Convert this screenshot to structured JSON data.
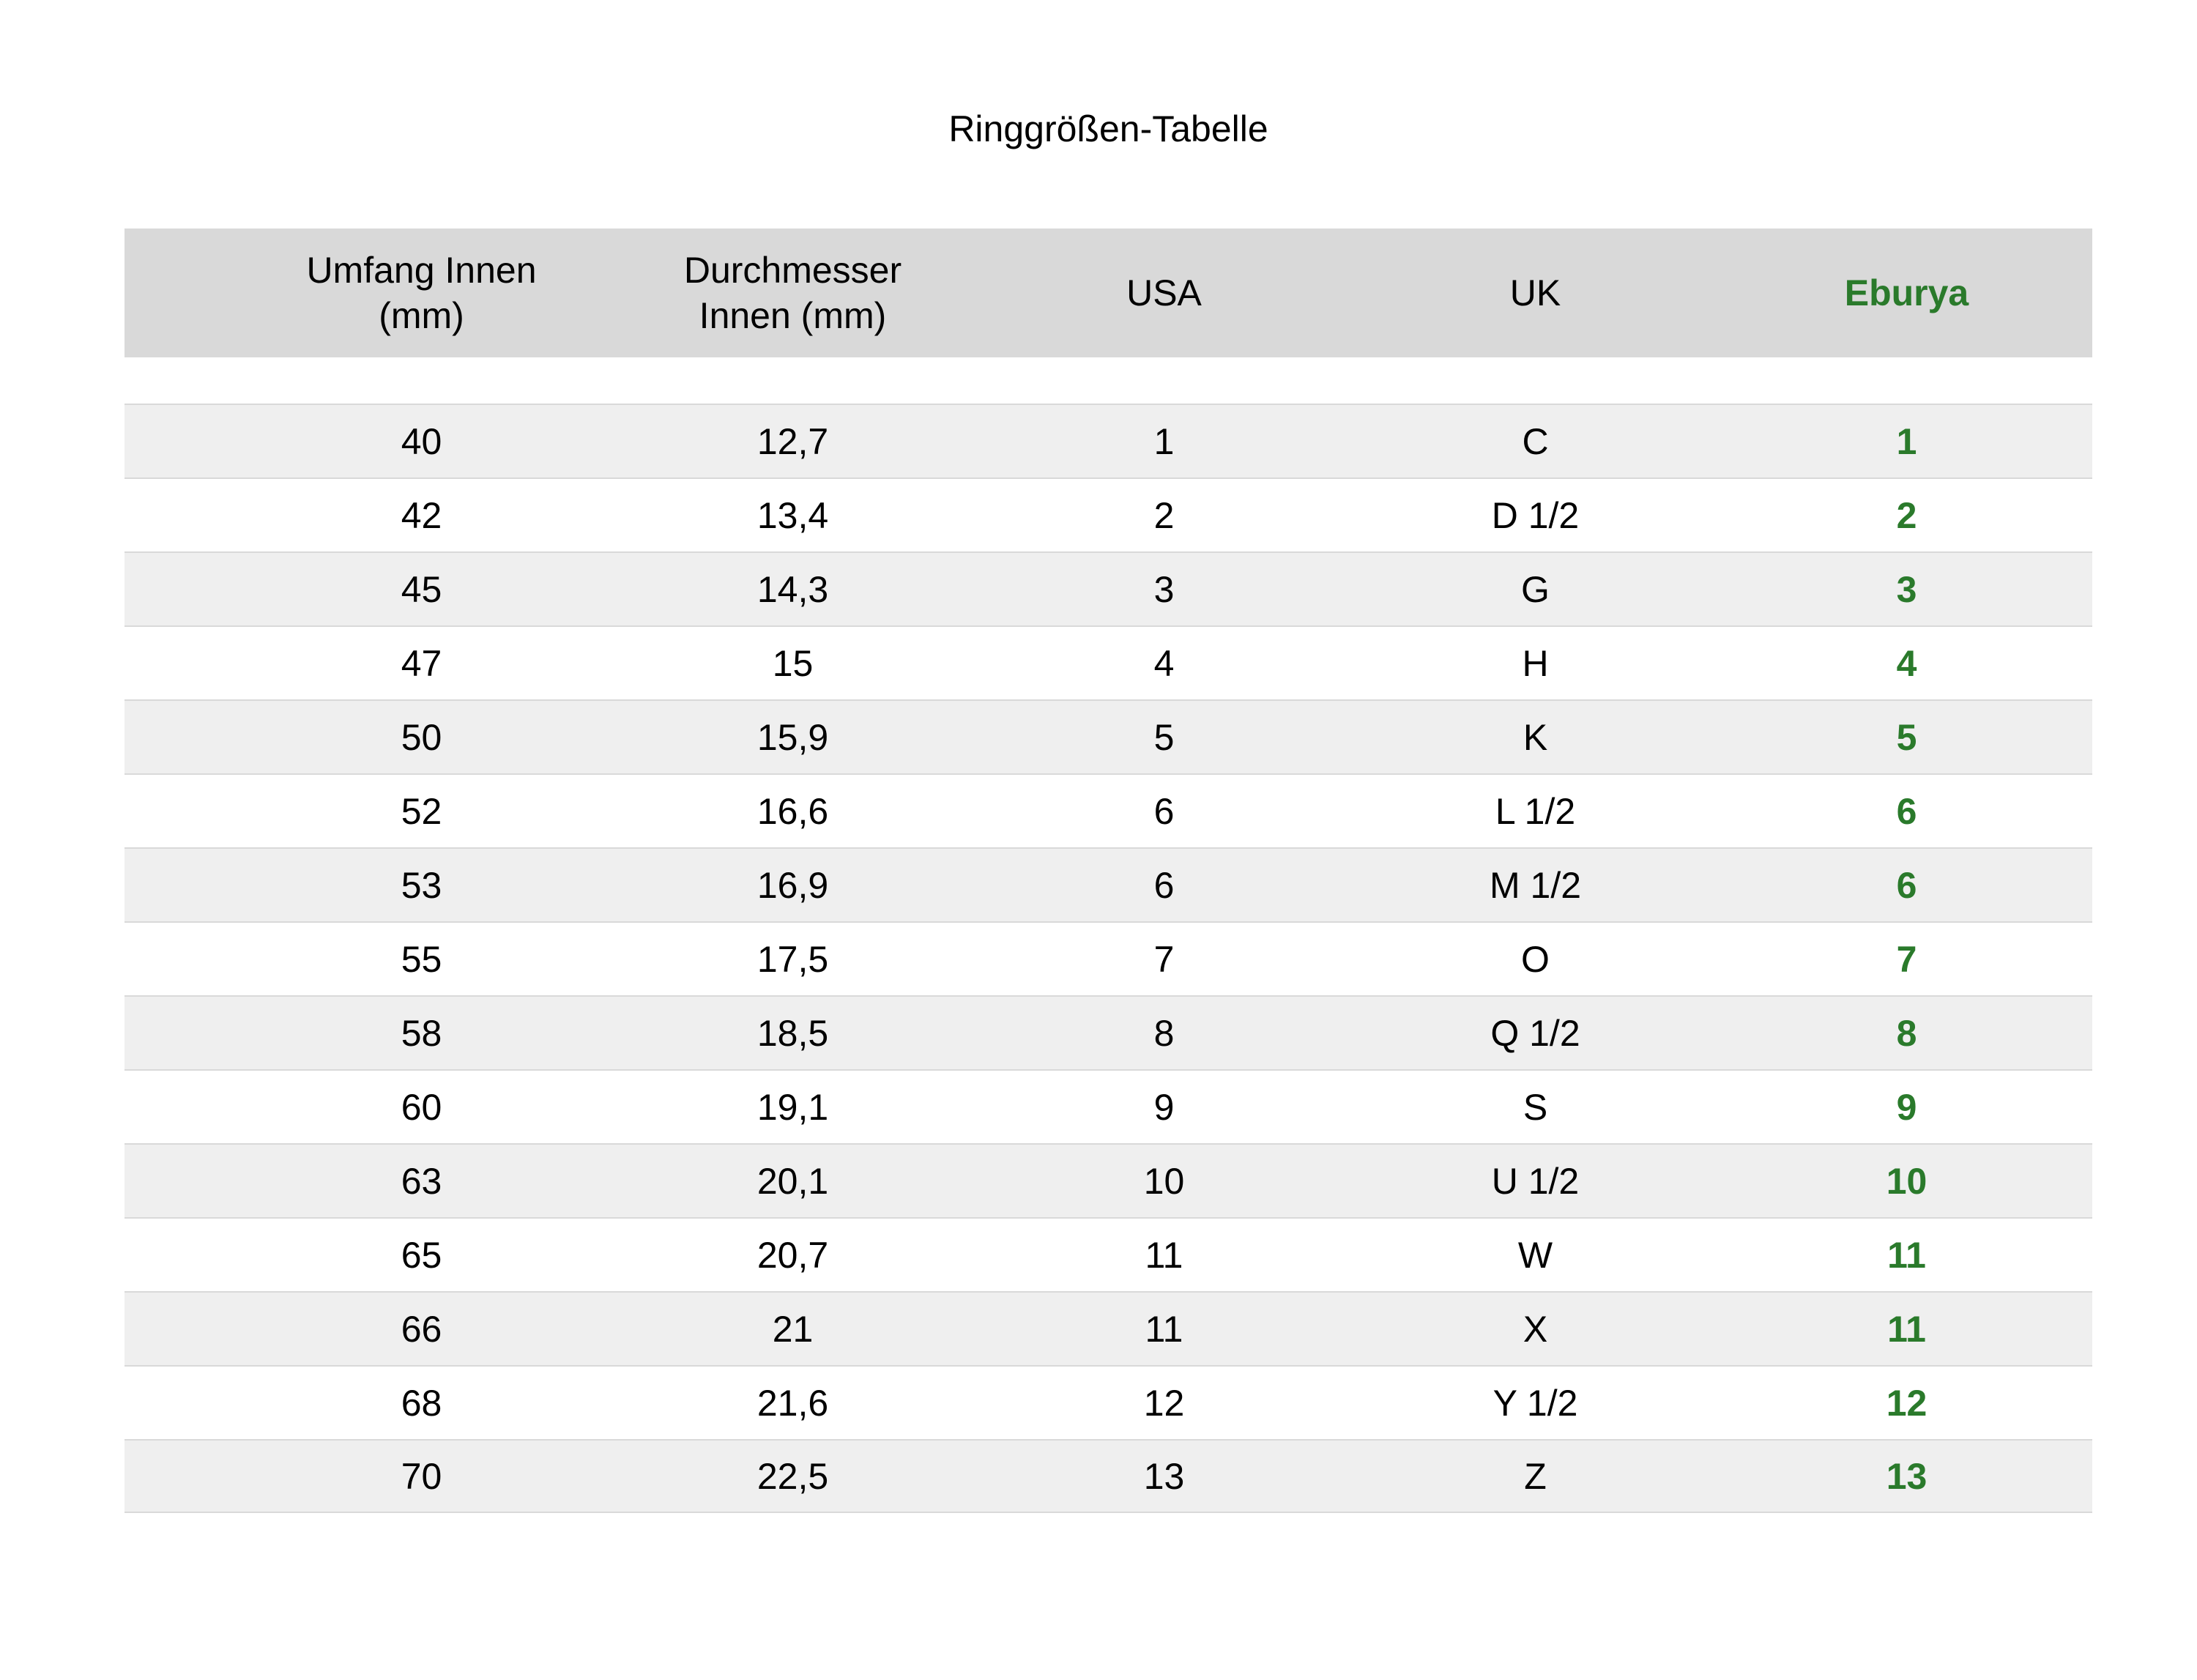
{
  "title": "Ringgrößen-Tabelle",
  "table": {
    "headers": [
      {
        "key": "umfang",
        "label": "Umfang Innen\n(mm)"
      },
      {
        "key": "durchmesser",
        "label": "Durchmesser\nInnen (mm)"
      },
      {
        "key": "usa",
        "label": "USA"
      },
      {
        "key": "uk",
        "label": "UK"
      },
      {
        "key": "eburya",
        "label": "Eburya"
      }
    ],
    "rows": [
      {
        "umfang": "40",
        "durchmesser": "12,7",
        "usa": "1",
        "uk": "C",
        "eburya": "1"
      },
      {
        "umfang": "42",
        "durchmesser": "13,4",
        "usa": "2",
        "uk": "D 1/2",
        "eburya": "2"
      },
      {
        "umfang": "45",
        "durchmesser": "14,3",
        "usa": "3",
        "uk": "G",
        "eburya": "3"
      },
      {
        "umfang": "47",
        "durchmesser": "15",
        "usa": "4",
        "uk": "H",
        "eburya": "4"
      },
      {
        "umfang": "50",
        "durchmesser": "15,9",
        "usa": "5",
        "uk": "K",
        "eburya": "5"
      },
      {
        "umfang": "52",
        "durchmesser": "16,6",
        "usa": "6",
        "uk": "L 1/2",
        "eburya": "6"
      },
      {
        "umfang": "53",
        "durchmesser": "16,9",
        "usa": "6",
        "uk": "M 1/2",
        "eburya": "6"
      },
      {
        "umfang": "55",
        "durchmesser": "17,5",
        "usa": "7",
        "uk": "O",
        "eburya": "7"
      },
      {
        "umfang": "58",
        "durchmesser": "18,5",
        "usa": "8",
        "uk": "Q 1/2",
        "eburya": "8"
      },
      {
        "umfang": "60",
        "durchmesser": "19,1",
        "usa": "9",
        "uk": "S",
        "eburya": "9"
      },
      {
        "umfang": "63",
        "durchmesser": "20,1",
        "usa": "10",
        "uk": "U 1/2",
        "eburya": "10"
      },
      {
        "umfang": "65",
        "durchmesser": "20,7",
        "usa": "11",
        "uk": "W",
        "eburya": "11"
      },
      {
        "umfang": "66",
        "durchmesser": "21",
        "usa": "11",
        "uk": "X",
        "eburya": "11"
      },
      {
        "umfang": "68",
        "durchmesser": "21,6",
        "usa": "12",
        "uk": "Y 1/2",
        "eburya": "12"
      },
      {
        "umfang": "70",
        "durchmesser": "22,5",
        "usa": "13",
        "uk": "Z",
        "eburya": "13"
      }
    ]
  },
  "colors": {
    "accent_green": "#2a7a2b",
    "header_bg": "#d9d9d9",
    "stripe_bg": "#efefef",
    "row_border": "#d9d9d9",
    "page_bg": "#ffffff",
    "text": "#000000"
  }
}
